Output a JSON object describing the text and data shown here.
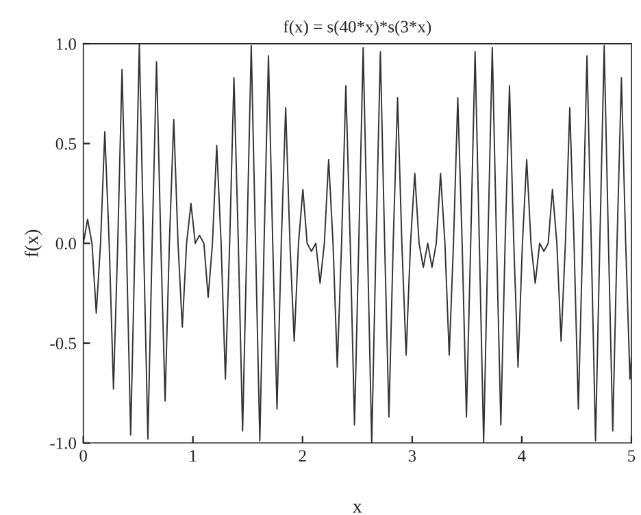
{
  "chart_data": {
    "type": "line",
    "title": "f(x) = s(40*x)*s(3*x)",
    "xlabel": "x",
    "ylabel": "f(x)",
    "xlim": [
      0,
      5
    ],
    "xticks": [
      0,
      1,
      2,
      3,
      4,
      5
    ],
    "ylim": [
      -1,
      1
    ],
    "yticks": [
      {
        "value": -1,
        "label": "-1.0"
      },
      {
        "value": -0.5,
        "label": "-0.5"
      },
      {
        "value": 0,
        "label": "0.0"
      },
      {
        "value": 0.5,
        "label": "0.5"
      },
      {
        "value": 1,
        "label": "1.0"
      }
    ],
    "grid": false,
    "marker": "none",
    "line_style": "solid",
    "series": [
      {
        "color": "#333333",
        "x": [
          0,
          0.039,
          0.079,
          0.118,
          0.157,
          0.196,
          0.236,
          0.275,
          0.314,
          0.353,
          0.393,
          0.432,
          0.471,
          0.511,
          0.55,
          0.589,
          0.628,
          0.668,
          0.707,
          0.746,
          0.785,
          0.825,
          0.864,
          0.903,
          0.942,
          0.982,
          1.021,
          1.06,
          1.1,
          1.139,
          1.178,
          1.217,
          1.257,
          1.296,
          1.335,
          1.374,
          1.414,
          1.453,
          1.492,
          1.532,
          1.571,
          1.61,
          1.649,
          1.689,
          1.728,
          1.767,
          1.806,
          1.846,
          1.885,
          1.924,
          1.963,
          2.003,
          2.042,
          2.081,
          2.121,
          2.16,
          2.199,
          2.238,
          2.278,
          2.317,
          2.356,
          2.395,
          2.435,
          2.474,
          2.513,
          2.553,
          2.592,
          2.631,
          2.67,
          2.71,
          2.749,
          2.788,
          2.827,
          2.867,
          2.906,
          2.945,
          2.985,
          3.024,
          3.063,
          3.102,
          3.142,
          3.181,
          3.22,
          3.259,
          3.299,
          3.338,
          3.377,
          3.416,
          3.456,
          3.495,
          3.534,
          3.574,
          3.613,
          3.652,
          3.691,
          3.731,
          3.77,
          3.809,
          3.848,
          3.888,
          3.927,
          3.966,
          4.006,
          4.045,
          4.084,
          4.123,
          4.163,
          4.202,
          4.241,
          4.28,
          4.32,
          4.359,
          4.398,
          4.438,
          4.477,
          4.516,
          4.555,
          4.595,
          4.634,
          4.673,
          4.712,
          4.752,
          4.791,
          4.83,
          4.869,
          4.909,
          4.948,
          4.987,
          5
        ],
        "values": [
          0,
          0.12,
          0,
          -0.35,
          0,
          0.56,
          0,
          -0.73,
          0,
          0.87,
          0,
          -0.96,
          0,
          1.0,
          0,
          -0.98,
          0,
          0.91,
          0,
          -0.79,
          0,
          0.62,
          0,
          -0.42,
          0,
          0.2,
          0,
          0.04,
          0,
          -0.27,
          0,
          0.49,
          0,
          -0.68,
          0,
          0.83,
          0,
          -0.94,
          0,
          0.99,
          0,
          -0.99,
          0,
          0.94,
          0,
          -0.83,
          0,
          0.68,
          0,
          -0.49,
          0,
          0.27,
          0,
          -0.04,
          0,
          -0.2,
          0,
          0.42,
          0,
          -0.62,
          0,
          0.79,
          0,
          -0.91,
          0,
          0.98,
          0,
          -1.0,
          0,
          0.96,
          0,
          -0.87,
          0,
          0.73,
          0,
          -0.56,
          0,
          0.35,
          0,
          -0.12,
          0,
          -0.12,
          0,
          0.35,
          0,
          -0.56,
          0,
          0.73,
          0,
          -0.87,
          0,
          0.96,
          0,
          -1.0,
          0,
          0.98,
          0,
          -0.91,
          0,
          0.79,
          0,
          -0.62,
          0,
          0.42,
          0,
          -0.2,
          0,
          -0.04,
          0,
          0.27,
          0,
          -0.49,
          0,
          0.68,
          0,
          -0.83,
          0,
          0.94,
          0,
          -0.99,
          0,
          0.99,
          0,
          -0.94,
          0,
          0.83,
          0,
          -0.68,
          -0.57
        ]
      }
    ]
  }
}
